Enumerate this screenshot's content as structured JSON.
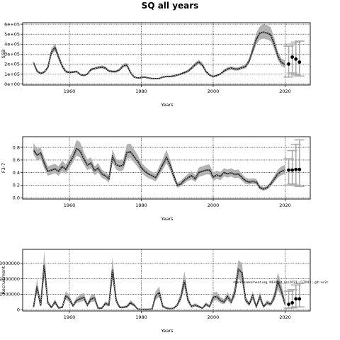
{
  "figure_title": "SQ all years",
  "annotation": "stockassessment.org, NEAhad_ass2021, r17042 ; git: ec2c",
  "chart_data": [
    {
      "type": "line",
      "ylabel": "SSB",
      "xlabel": "Years",
      "xlim": [
        1947,
        2027
      ],
      "ylim": [
        -10000,
        615000
      ],
      "yticks": [
        0,
        100000,
        200000,
        300000,
        400000,
        500000,
        600000
      ],
      "ytick_labels": [
        "0e+00",
        "1e+05",
        "2e+05",
        "3e+05",
        "4e+05",
        "5e+05",
        "6e+05"
      ],
      "xticks": [
        1960,
        1980,
        2000,
        2020
      ],
      "xtick_labels": [
        "1960",
        "1980",
        "2000",
        "2020"
      ],
      "grid": true,
      "x": [
        1950,
        1951,
        1952,
        1953,
        1954,
        1955,
        1956,
        1957,
        1958,
        1959,
        1960,
        1961,
        1962,
        1963,
        1964,
        1965,
        1966,
        1967,
        1968,
        1969,
        1970,
        1971,
        1972,
        1973,
        1974,
        1975,
        1976,
        1977,
        1978,
        1979,
        1980,
        1981,
        1982,
        1983,
        1984,
        1985,
        1986,
        1987,
        1988,
        1989,
        1990,
        1991,
        1992,
        1993,
        1994,
        1995,
        1996,
        1997,
        1998,
        1999,
        2000,
        2001,
        2002,
        2003,
        2004,
        2005,
        2006,
        2007,
        2008,
        2009,
        2010,
        2011,
        2012,
        2013,
        2014,
        2015,
        2016,
        2017,
        2018,
        2019,
        2020
      ],
      "y": [
        215000,
        130000,
        105000,
        120000,
        165000,
        320000,
        365000,
        270000,
        180000,
        125000,
        115000,
        120000,
        125000,
        95000,
        85000,
        100000,
        145000,
        155000,
        165000,
        170000,
        160000,
        130000,
        125000,
        125000,
        145000,
        185000,
        190000,
        115000,
        70000,
        60000,
        65000,
        70000,
        60000,
        55000,
        55000,
        55000,
        70000,
        75000,
        75000,
        80000,
        90000,
        100000,
        115000,
        130000,
        160000,
        195000,
        220000,
        190000,
        125000,
        90000,
        75000,
        85000,
        100000,
        130000,
        150000,
        160000,
        150000,
        150000,
        165000,
        175000,
        230000,
        340000,
        450000,
        510000,
        520000,
        510000,
        495000,
        400000,
        280000,
        215000,
        195000
      ],
      "ci_low": [
        200000,
        115000,
        95000,
        110000,
        150000,
        290000,
        330000,
        240000,
        160000,
        112000,
        105000,
        110000,
        115000,
        86000,
        78000,
        90000,
        132000,
        142000,
        152000,
        155000,
        145000,
        118000,
        113000,
        113000,
        130000,
        165000,
        170000,
        102000,
        62000,
        52000,
        57000,
        62000,
        52000,
        48000,
        48000,
        48000,
        62000,
        66000,
        66000,
        70000,
        80000,
        89000,
        102000,
        116000,
        143000,
        175000,
        198000,
        170000,
        110000,
        79000,
        66000,
        75000,
        89000,
        116000,
        135000,
        144000,
        135000,
        135000,
        148000,
        156000,
        205000,
        300000,
        395000,
        445000,
        455000,
        445000,
        430000,
        345000,
        240000,
        180000,
        160000
      ],
      "ci_high": [
        230000,
        145000,
        115000,
        132000,
        180000,
        355000,
        405000,
        300000,
        200000,
        140000,
        127000,
        131000,
        136000,
        105000,
        93000,
        110000,
        160000,
        168000,
        178000,
        186000,
        176000,
        143000,
        137000,
        137000,
        160000,
        205000,
        212000,
        128000,
        79000,
        68000,
        73000,
        78000,
        68000,
        62000,
        62000,
        62000,
        78000,
        84000,
        84000,
        90000,
        100000,
        111000,
        128000,
        144000,
        178000,
        216000,
        244000,
        212000,
        140000,
        101000,
        85000,
        96000,
        112000,
        145000,
        167000,
        177000,
        167000,
        167000,
        183000,
        195000,
        257000,
        382000,
        510000,
        580000,
        600000,
        590000,
        570000,
        460000,
        325000,
        255000,
        235000
      ],
      "forecast": [
        {
          "x": 2021,
          "y": 200000,
          "low": 70000,
          "high": 380000
        },
        {
          "x": 2022,
          "y": 270000,
          "low": 110000,
          "high": 400000
        },
        {
          "x": 2023,
          "y": 250000,
          "low": 90000,
          "high": 420000
        },
        {
          "x": 2024,
          "y": 220000,
          "low": 80000,
          "high": 430000
        }
      ]
    },
    {
      "type": "line",
      "ylabel": "F3-7",
      "xlabel": "Years",
      "xlim": [
        1947,
        2027
      ],
      "ylim": [
        -0.02,
        0.97
      ],
      "yticks": [
        0.0,
        0.2,
        0.4,
        0.6,
        0.8
      ],
      "ytick_labels": [
        "0.0",
        "0.2",
        "0.4",
        "0.6",
        "0.8"
      ],
      "xticks": [
        1960,
        1980,
        2000,
        2020
      ],
      "xtick_labels": [
        "1960",
        "1980",
        "2000",
        "2020"
      ],
      "grid": true,
      "x": [
        1950,
        1951,
        1952,
        1953,
        1954,
        1955,
        1956,
        1957,
        1958,
        1959,
        1960,
        1961,
        1962,
        1963,
        1964,
        1965,
        1966,
        1967,
        1968,
        1969,
        1970,
        1971,
        1972,
        1973,
        1974,
        1975,
        1976,
        1977,
        1978,
        1979,
        1980,
        1981,
        1982,
        1983,
        1984,
        1985,
        1986,
        1987,
        1988,
        1989,
        1990,
        1991,
        1992,
        1993,
        1994,
        1995,
        1996,
        1997,
        1998,
        1999,
        2000,
        2001,
        2002,
        2003,
        2004,
        2005,
        2006,
        2007,
        2008,
        2009,
        2010,
        2011,
        2012,
        2013,
        2014,
        2015,
        2016,
        2017,
        2018,
        2019,
        2020
      ],
      "y": [
        0.76,
        0.68,
        0.71,
        0.55,
        0.42,
        0.44,
        0.46,
        0.42,
        0.5,
        0.45,
        0.55,
        0.65,
        0.78,
        0.74,
        0.62,
        0.52,
        0.55,
        0.43,
        0.47,
        0.38,
        0.35,
        0.3,
        0.65,
        0.53,
        0.5,
        0.52,
        0.72,
        0.73,
        0.65,
        0.58,
        0.48,
        0.42,
        0.38,
        0.35,
        0.32,
        0.42,
        0.53,
        0.64,
        0.52,
        0.35,
        0.2,
        0.22,
        0.28,
        0.32,
        0.35,
        0.3,
        0.4,
        0.42,
        0.44,
        0.44,
        0.33,
        0.36,
        0.34,
        0.4,
        0.38,
        0.4,
        0.37,
        0.38,
        0.32,
        0.27,
        0.25,
        0.26,
        0.25,
        0.16,
        0.14,
        0.16,
        0.22,
        0.3,
        0.38,
        0.42,
        0.44
      ],
      "ci_low": [
        0.69,
        0.6,
        0.62,
        0.47,
        0.35,
        0.37,
        0.39,
        0.35,
        0.42,
        0.38,
        0.47,
        0.56,
        0.67,
        0.64,
        0.53,
        0.44,
        0.47,
        0.36,
        0.4,
        0.32,
        0.29,
        0.24,
        0.56,
        0.45,
        0.42,
        0.44,
        0.62,
        0.63,
        0.56,
        0.49,
        0.4,
        0.35,
        0.31,
        0.29,
        0.26,
        0.35,
        0.45,
        0.55,
        0.44,
        0.29,
        0.16,
        0.18,
        0.23,
        0.27,
        0.29,
        0.25,
        0.33,
        0.35,
        0.37,
        0.37,
        0.27,
        0.3,
        0.28,
        0.34,
        0.32,
        0.34,
        0.31,
        0.32,
        0.27,
        0.22,
        0.21,
        0.22,
        0.21,
        0.13,
        0.11,
        0.13,
        0.18,
        0.25,
        0.32,
        0.36,
        0.38
      ],
      "ci_high": [
        0.87,
        0.78,
        0.8,
        0.64,
        0.5,
        0.52,
        0.54,
        0.5,
        0.59,
        0.53,
        0.64,
        0.75,
        0.92,
        0.88,
        0.73,
        0.61,
        0.64,
        0.5,
        0.55,
        0.45,
        0.41,
        0.36,
        0.77,
        0.62,
        0.59,
        0.61,
        0.85,
        0.86,
        0.77,
        0.68,
        0.56,
        0.5,
        0.45,
        0.41,
        0.38,
        0.5,
        0.62,
        0.76,
        0.61,
        0.41,
        0.24,
        0.27,
        0.33,
        0.38,
        0.42,
        0.36,
        0.48,
        0.5,
        0.52,
        0.53,
        0.4,
        0.43,
        0.41,
        0.47,
        0.45,
        0.47,
        0.44,
        0.45,
        0.38,
        0.32,
        0.3,
        0.31,
        0.3,
        0.2,
        0.17,
        0.19,
        0.26,
        0.35,
        0.45,
        0.5,
        0.52
      ],
      "forecast": [
        {
          "x": 2021,
          "y": 0.44,
          "low": 0.2,
          "high": 0.62
        },
        {
          "x": 2022,
          "y": 0.44,
          "low": 0.22,
          "high": 0.75
        },
        {
          "x": 2023,
          "y": 0.45,
          "low": 0.2,
          "high": 0.85
        },
        {
          "x": 2024,
          "y": 0.45,
          "low": 0.18,
          "high": 0.92
        }
      ]
    },
    {
      "type": "line",
      "ylabel": "Recruitment",
      "xlabel": "Years",
      "xlim": [
        1947,
        2027
      ],
      "ylim": [
        -80000,
        3900000
      ],
      "yticks": [
        0,
        1000000,
        2000000,
        3000000
      ],
      "ytick_labels": [
        "0",
        "1000000",
        "2000000",
        "3000000"
      ],
      "xticks": [
        1960,
        1980,
        2000,
        2020
      ],
      "xtick_labels": [
        "1960",
        "1980",
        "2000",
        "2020"
      ],
      "grid": true,
      "x": [
        1950,
        1951,
        1952,
        1953,
        1954,
        1955,
        1956,
        1957,
        1958,
        1959,
        1960,
        1961,
        1962,
        1963,
        1964,
        1965,
        1966,
        1967,
        1968,
        1969,
        1970,
        1971,
        1972,
        1973,
        1974,
        1975,
        1976,
        1977,
        1978,
        1979,
        1980,
        1981,
        1982,
        1983,
        1984,
        1985,
        1986,
        1987,
        1988,
        1989,
        1990,
        1991,
        1992,
        1993,
        1994,
        1995,
        1996,
        1997,
        1998,
        1999,
        2000,
        2001,
        2002,
        2003,
        2004,
        2005,
        2006,
        2007,
        2008,
        2009,
        2010,
        2011,
        2012,
        2013,
        2014,
        2015,
        2016,
        2017,
        2018,
        2019,
        2020
      ],
      "y": [
        150000,
        1500000,
        250000,
        2900000,
        450000,
        150000,
        500000,
        120000,
        150000,
        900000,
        700000,
        250000,
        600000,
        700000,
        800000,
        300000,
        700000,
        750000,
        90000,
        100000,
        400000,
        300000,
        2600000,
        600000,
        150000,
        150000,
        200000,
        450000,
        300000,
        40000,
        30000,
        25000,
        30000,
        40000,
        900000,
        1100000,
        200000,
        100000,
        70000,
        90000,
        300000,
        800000,
        1900000,
        600000,
        200000,
        300000,
        200000,
        100000,
        350000,
        200000,
        800000,
        850000,
        600000,
        500000,
        850000,
        500000,
        1100000,
        2600000,
        2400000,
        650000,
        350000,
        900000,
        200000,
        850000,
        200000,
        450000,
        350000,
        800000,
        1800000,
        1200000,
        350000
      ],
      "ci_low": [
        80000,
        1100000,
        180000,
        2100000,
        320000,
        90000,
        360000,
        70000,
        100000,
        650000,
        500000,
        170000,
        430000,
        500000,
        580000,
        200000,
        500000,
        540000,
        50000,
        60000,
        280000,
        200000,
        1900000,
        430000,
        90000,
        90000,
        130000,
        320000,
        200000,
        20000,
        15000,
        12000,
        15000,
        20000,
        650000,
        800000,
        130000,
        60000,
        40000,
        50000,
        200000,
        580000,
        1400000,
        430000,
        130000,
        200000,
        130000,
        60000,
        240000,
        130000,
        580000,
        620000,
        430000,
        350000,
        620000,
        350000,
        800000,
        2000000,
        1800000,
        470000,
        240000,
        650000,
        130000,
        620000,
        130000,
        310000,
        240000,
        580000,
        1300000,
        850000,
        230000
      ],
      "ci_high": [
        250000,
        2000000,
        350000,
        3800000,
        600000,
        230000,
        680000,
        200000,
        220000,
        1200000,
        950000,
        350000,
        800000,
        950000,
        1100000,
        420000,
        950000,
        1000000,
        150000,
        160000,
        550000,
        420000,
        3400000,
        820000,
        230000,
        230000,
        290000,
        620000,
        420000,
        70000,
        55000,
        45000,
        55000,
        70000,
        1200000,
        1500000,
        290000,
        160000,
        110000,
        140000,
        420000,
        1100000,
        2500000,
        820000,
        290000,
        420000,
        290000,
        160000,
        480000,
        290000,
        1100000,
        1150000,
        820000,
        680000,
        1150000,
        680000,
        1500000,
        3200000,
        3000000,
        880000,
        480000,
        1200000,
        290000,
        1150000,
        290000,
        620000,
        480000,
        1100000,
        2400000,
        1650000,
        500000
      ],
      "forecast": [
        {
          "x": 2021,
          "y": 350000,
          "low": 100000,
          "high": 1200000
        },
        {
          "x": 2022,
          "y": 450000,
          "low": 120000,
          "high": 1300000
        },
        {
          "x": 2023,
          "y": 700000,
          "low": 180000,
          "high": 1600000
        },
        {
          "x": 2024,
          "y": 700000,
          "low": 180000,
          "high": 1700000
        }
      ]
    }
  ]
}
